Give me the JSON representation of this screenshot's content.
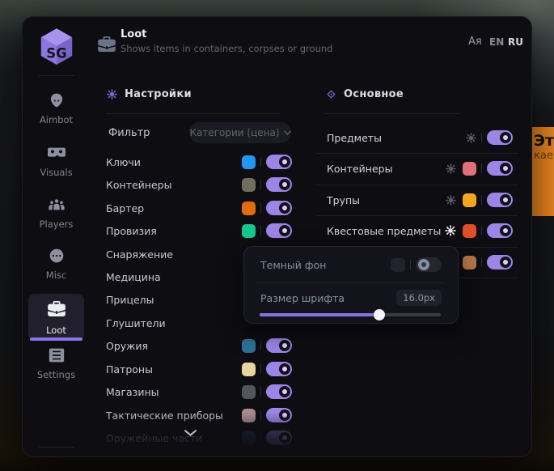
{
  "logo": {
    "text": "SG"
  },
  "header": {
    "title": "Loot",
    "subtitle": "Shows items in containers, corpses or ground",
    "translate_icon_text": "Aя",
    "languages": [
      {
        "code": "EN",
        "active": false
      },
      {
        "code": "RU",
        "active": true
      }
    ]
  },
  "sidebar": {
    "items": [
      {
        "label": "Aimbot",
        "icon": "alien-icon",
        "active": false
      },
      {
        "label": "Visuals",
        "icon": "goggles-icon",
        "active": false
      },
      {
        "label": "Players",
        "icon": "players-icon",
        "active": false
      },
      {
        "label": "Misc",
        "icon": "ellipsis-icon",
        "active": false
      },
      {
        "label": "Loot",
        "icon": "briefcase-icon",
        "active": true
      },
      {
        "label": "Settings",
        "icon": "list-icon",
        "active": false
      }
    ]
  },
  "left_panel": {
    "title": "Настройки",
    "filter": {
      "label": "Фильтр",
      "value": "Категории (цена)"
    },
    "items": [
      {
        "label": "Ключи",
        "color": "#2196f3",
        "enabled": true
      },
      {
        "label": "Контейнеры",
        "color": "#6e705c",
        "enabled": true
      },
      {
        "label": "Бартер",
        "color": "#e06c0c",
        "enabled": true
      },
      {
        "label": "Провизия",
        "color": "#17c78f",
        "enabled": true
      },
      {
        "label": "Снаряжение",
        "color": null,
        "enabled": null
      },
      {
        "label": "Медицина",
        "color": null,
        "enabled": null
      },
      {
        "label": "Прицелы",
        "color": null,
        "enabled": null
      },
      {
        "label": "Глушители",
        "color": null,
        "enabled": null
      },
      {
        "label": "Оружия",
        "color": "#2e7196",
        "enabled": true
      },
      {
        "label": "Патроны",
        "color": "#e7d4a0",
        "enabled": true
      },
      {
        "label": "Магазины",
        "color": "#55555f",
        "enabled": true
      },
      {
        "label": "Тактические приборы",
        "color": "#a98b92",
        "enabled": true
      },
      {
        "label": "Оружейные части",
        "color": "#27445a",
        "enabled": true
      }
    ]
  },
  "right_panel": {
    "title": "Основное",
    "items": [
      {
        "label": "Предметы",
        "color": null,
        "enabled": true
      },
      {
        "label": "Контейнеры",
        "color": "#e0707a",
        "enabled": true
      },
      {
        "label": "Трупы",
        "color": "#f5a81f",
        "enabled": true
      },
      {
        "label": "Квестовые предметы",
        "color": "#df4f28",
        "enabled": true
      },
      {
        "label": "",
        "color": "#b5764a",
        "enabled": true
      }
    ]
  },
  "popup": {
    "dark_bg": {
      "label": "Темный фон",
      "enabled": false,
      "swatch_color": "#23232e"
    },
    "font_size": {
      "label": "Размер шрифта",
      "value": "16.0px",
      "slider_percent": 66
    }
  },
  "background_banner": {
    "line1": "Эт",
    "line2": "кае"
  },
  "colors": {
    "accent": "#7c63d8",
    "toggle_on": "#9d85e8"
  }
}
